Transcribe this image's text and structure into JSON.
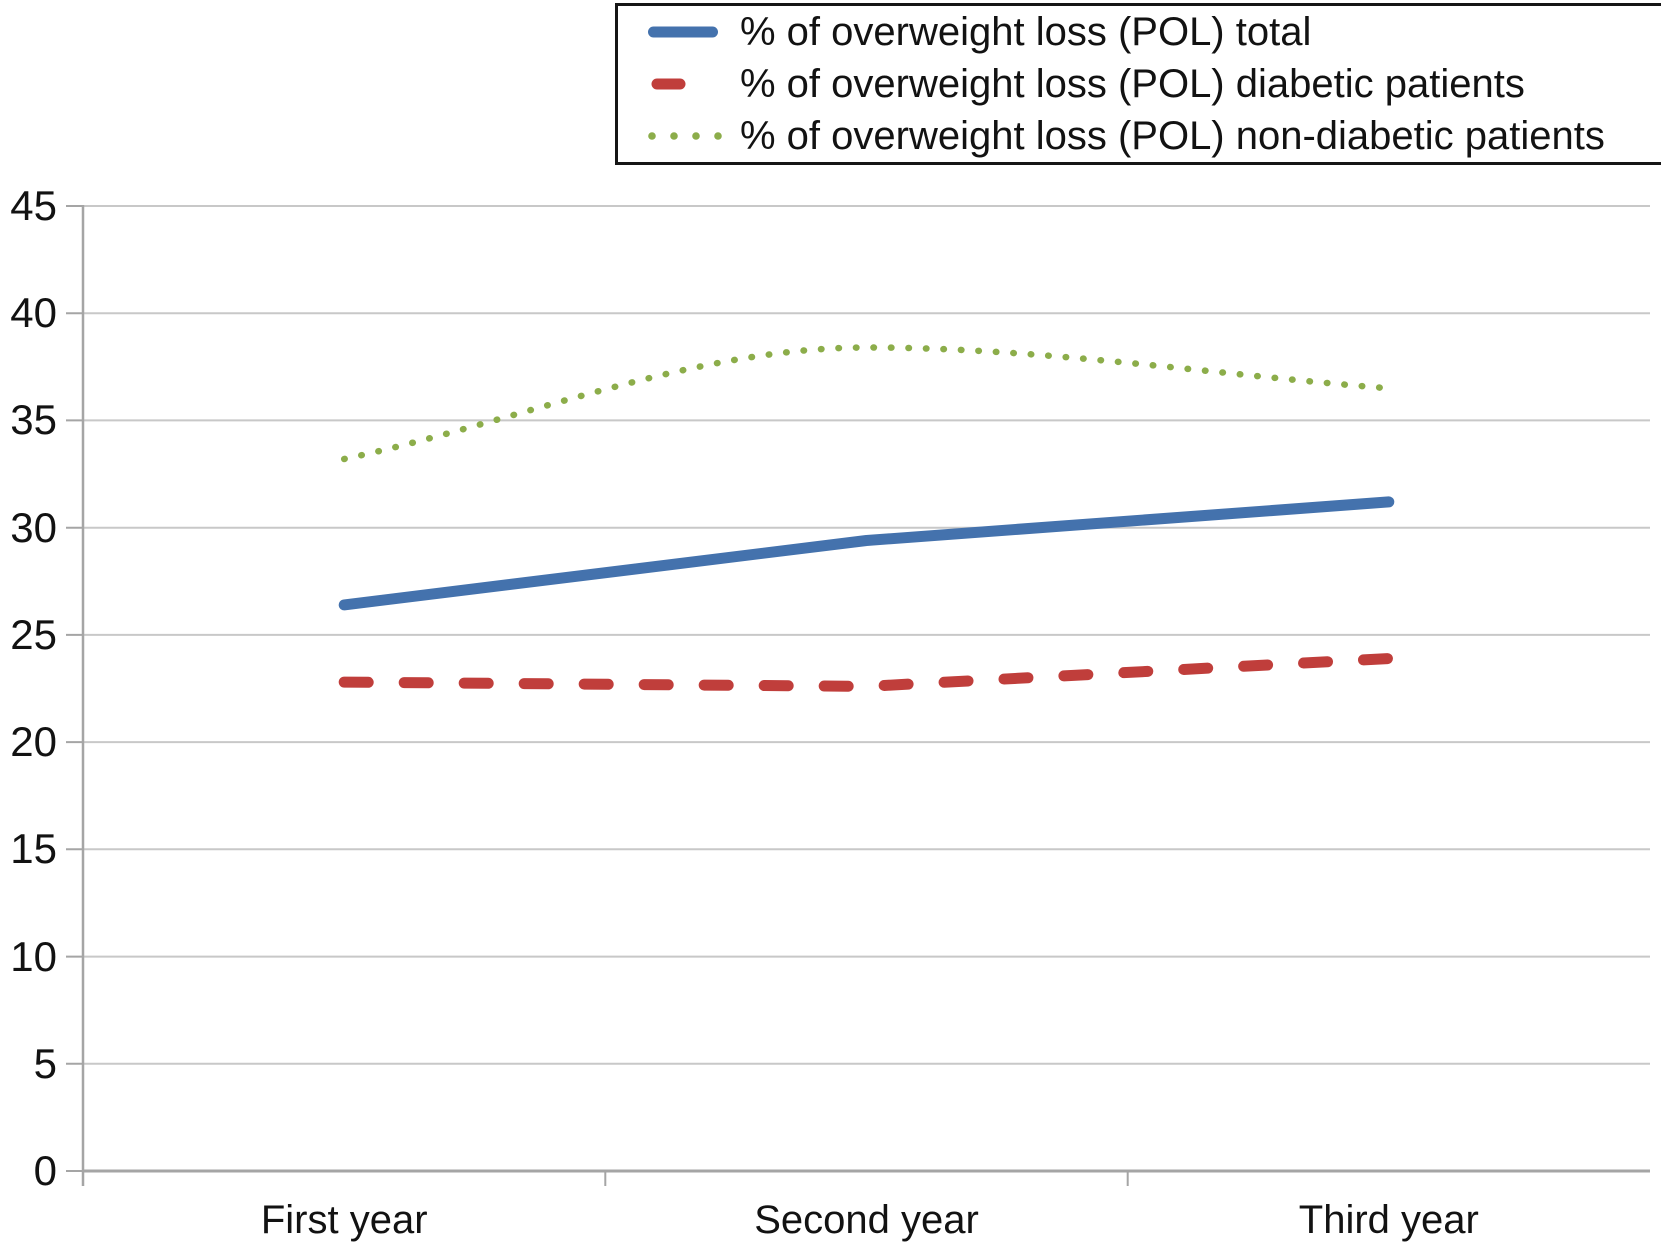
{
  "chart_data": {
    "type": "line",
    "categories": [
      "First year",
      "Second year",
      "Third year"
    ],
    "series": [
      {
        "key": "total",
        "name": "% of overweight loss (POL) total",
        "values": [
          26.4,
          29.4,
          31.2
        ],
        "color": "#4472ad",
        "style": "solid",
        "smooth": false
      },
      {
        "key": "diabetic",
        "name": "% of overweight loss (POL) diabetic patients",
        "values": [
          22.8,
          22.6,
          23.9
        ],
        "color": "#c03e3b",
        "style": "dashed",
        "smooth": false
      },
      {
        "key": "non-diabetic",
        "name": "% of overweight loss (POL) non-diabetic patients",
        "values": [
          33.2,
          38.4,
          36.5
        ],
        "color": "#8cad4a",
        "style": "dotted",
        "smooth": true
      }
    ],
    "title": "",
    "xlabel": "",
    "ylabel": "",
    "ylim": [
      0,
      45
    ],
    "yticks": [
      0,
      5,
      10,
      15,
      20,
      25,
      30,
      35,
      40,
      45
    ],
    "grid": true,
    "legend_position": "top-right"
  },
  "colors": {
    "gridline": "#c8c8c8",
    "axis": "#a5a5a5",
    "text": "#121212",
    "legend_border": "#161616",
    "background": "#ffffff"
  }
}
